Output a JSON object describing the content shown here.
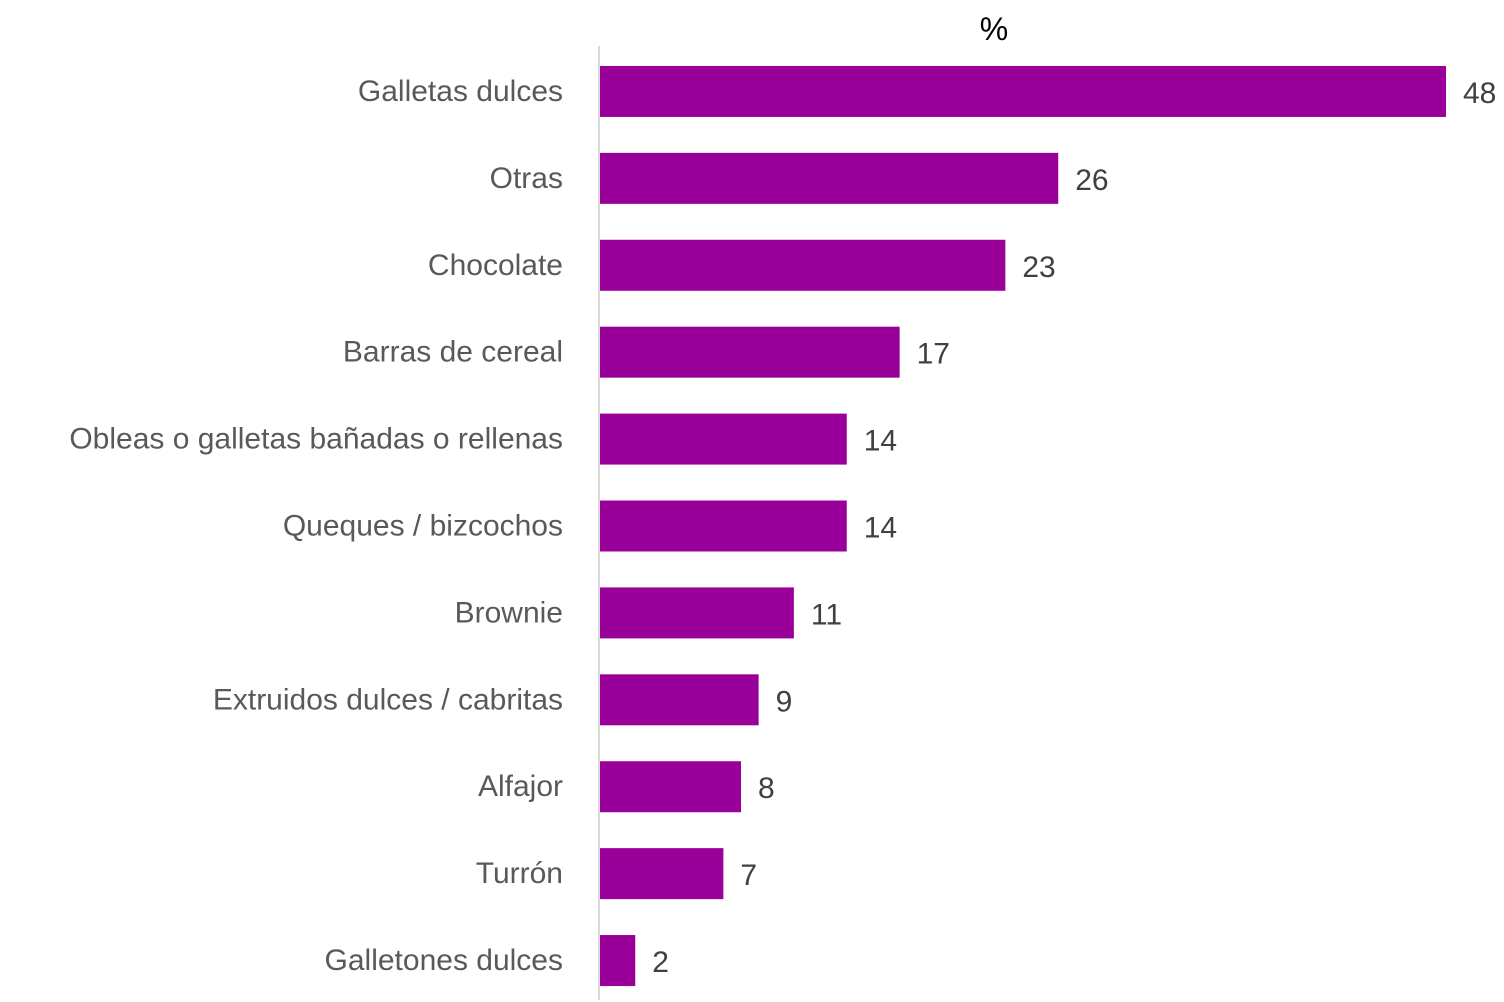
{
  "chart_data": {
    "type": "bar",
    "orientation": "horizontal",
    "title": "%",
    "categories": [
      "Galletas dulces",
      "Otras",
      "Chocolate",
      "Barras de cereal",
      "Obleas o galletas bañadas o rellenas",
      "Queques / bizcochos",
      "Brownie",
      "Extruidos dulces / cabritas",
      "Alfajor",
      "Turrón",
      "Galletones dulces"
    ],
    "values": [
      48,
      26,
      23,
      17,
      14,
      14,
      11,
      9,
      8,
      7,
      2
    ],
    "xlim": [
      0,
      48
    ],
    "grid": false,
    "legend": "none",
    "data_labels": true,
    "bar_color": "#990099",
    "axis_color": "#d9d9d9"
  }
}
